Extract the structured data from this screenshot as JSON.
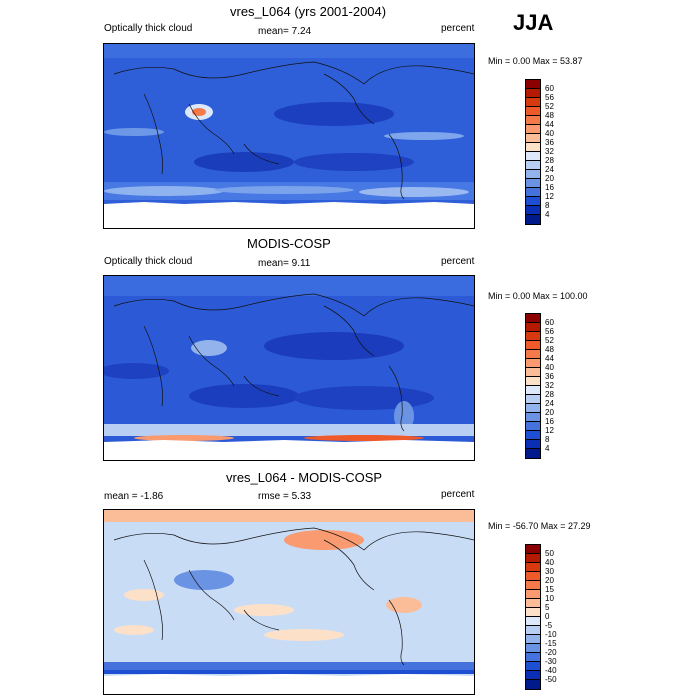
{
  "season": "JJA",
  "panels": [
    {
      "title": "vres_L064 (yrs 2001-2004)",
      "left_label": "Optically thick cloud",
      "mid_label": "mean=  7.24",
      "right_label": "percent",
      "minmax": "Min =  0.00 Max =  53.87",
      "scheme": "abs",
      "base_color": "#2f63d9",
      "levels": [
        "60",
        "56",
        "52",
        "48",
        "44",
        "40",
        "36",
        "32",
        "28",
        "24",
        "20",
        "16",
        "12",
        "8",
        "4"
      ]
    },
    {
      "title": "MODIS-COSP",
      "left_label": "Optically thick cloud",
      "mid_label": "mean=  9.11",
      "right_label": "percent",
      "minmax": "Min =  0.00 Max = 100.00",
      "scheme": "abs",
      "base_color": "#2255d0",
      "levels": [
        "60",
        "56",
        "52",
        "48",
        "44",
        "40",
        "36",
        "32",
        "28",
        "24",
        "20",
        "16",
        "12",
        "8",
        "4"
      ]
    },
    {
      "title": "vres_L064 - MODIS-COSP",
      "left_label": "mean = -1.86",
      "mid_label": "rmse =  5.33",
      "right_label": "percent",
      "minmax": "Min = -56.70 Max =  27.29",
      "scheme": "diff",
      "base_color": "#c8dcf5",
      "levels": [
        "50",
        "40",
        "30",
        "20",
        "15",
        "10",
        "5",
        "0",
        "-5",
        "-10",
        "-15",
        "-20",
        "-30",
        "-40",
        "-50"
      ]
    }
  ],
  "colors": {
    "abs_scale": [
      "#8b0000",
      "#b31a00",
      "#d83a10",
      "#ee5a2a",
      "#f57a4a",
      "#f99a70",
      "#fbbc98",
      "#fde0c8",
      "#dde9fb",
      "#b8cff3",
      "#92b3ec",
      "#6b93e4",
      "#4572dc",
      "#1e4fd2",
      "#0a2fb4",
      "#001a8c"
    ],
    "diff_scale": [
      "#8b0000",
      "#b31a00",
      "#d83a10",
      "#ee5a2a",
      "#f57a4a",
      "#f99a70",
      "#fbbc98",
      "#fde0c8",
      "#dde9fb",
      "#b8cff3",
      "#92b3ec",
      "#6b93e4",
      "#4572dc",
      "#1e4fd2",
      "#0a2fb4",
      "#001a8c"
    ]
  }
}
